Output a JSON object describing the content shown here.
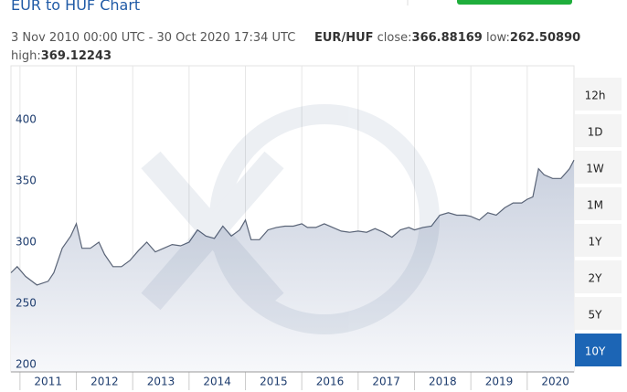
{
  "chart_data": {
    "type": "area",
    "title": "EUR to HUF Chart",
    "date_range": "3 Nov 2010 00:00 UTC - 30 Oct 2020 17:34 UTC",
    "pair": "EUR/HUF",
    "close_label": "close:",
    "close": "366.88169",
    "low_label": "low:",
    "low": "262.50890",
    "high_label": "high:",
    "high": "369.12243",
    "x": [
      2010.84,
      2010.95,
      2011.1,
      2011.3,
      2011.5,
      2011.6,
      2011.75,
      2011.9,
      2012.0,
      2012.1,
      2012.25,
      2012.4,
      2012.5,
      2012.65,
      2012.8,
      2012.95,
      2013.1,
      2013.25,
      2013.4,
      2013.55,
      2013.7,
      2013.85,
      2014.0,
      2014.15,
      2014.3,
      2014.45,
      2014.6,
      2014.75,
      2014.9,
      2015.0,
      2015.1,
      2015.25,
      2015.4,
      2015.55,
      2015.7,
      2015.85,
      2016.0,
      2016.1,
      2016.25,
      2016.4,
      2016.55,
      2016.7,
      2016.85,
      2017.0,
      2017.15,
      2017.3,
      2017.45,
      2017.6,
      2017.75,
      2017.9,
      2018.0,
      2018.15,
      2018.3,
      2018.45,
      2018.6,
      2018.75,
      2018.9,
      2019.0,
      2019.15,
      2019.3,
      2019.45,
      2019.6,
      2019.75,
      2019.9,
      2020.0,
      2020.1,
      2020.2,
      2020.3,
      2020.45,
      2020.6,
      2020.75,
      2020.83
    ],
    "series": [
      {
        "color": "#5a6477",
        "values": [
          275,
          280,
          272,
          265,
          268,
          275,
          295,
          305,
          315,
          295,
          295,
          300,
          290,
          280,
          280,
          285,
          293,
          300,
          292,
          295,
          298,
          297,
          300,
          310,
          305,
          303,
          313,
          305,
          310,
          318,
          302,
          302,
          310,
          312,
          313,
          313,
          315,
          312,
          312,
          315,
          312,
          309,
          308,
          309,
          308,
          311,
          308,
          304,
          310,
          312,
          310,
          312,
          313,
          322,
          324,
          322,
          322,
          321,
          318,
          324,
          322,
          328,
          332,
          332,
          335,
          337,
          360,
          355,
          352,
          352,
          360,
          367
        ]
      }
    ],
    "xlim": [
      2010.84,
      2020.83
    ],
    "xticks": [
      2011,
      2012,
      2013,
      2014,
      2015,
      2016,
      2017,
      2018,
      2019,
      2020
    ],
    "ylim": [
      194,
      444
    ],
    "yticks": [
      200,
      250,
      300,
      350,
      400
    ],
    "grid": true,
    "range_buttons": [
      "12h",
      "1D",
      "1W",
      "1M",
      "1Y",
      "2Y",
      "5Y",
      "10Y"
    ],
    "active_button": 7
  }
}
